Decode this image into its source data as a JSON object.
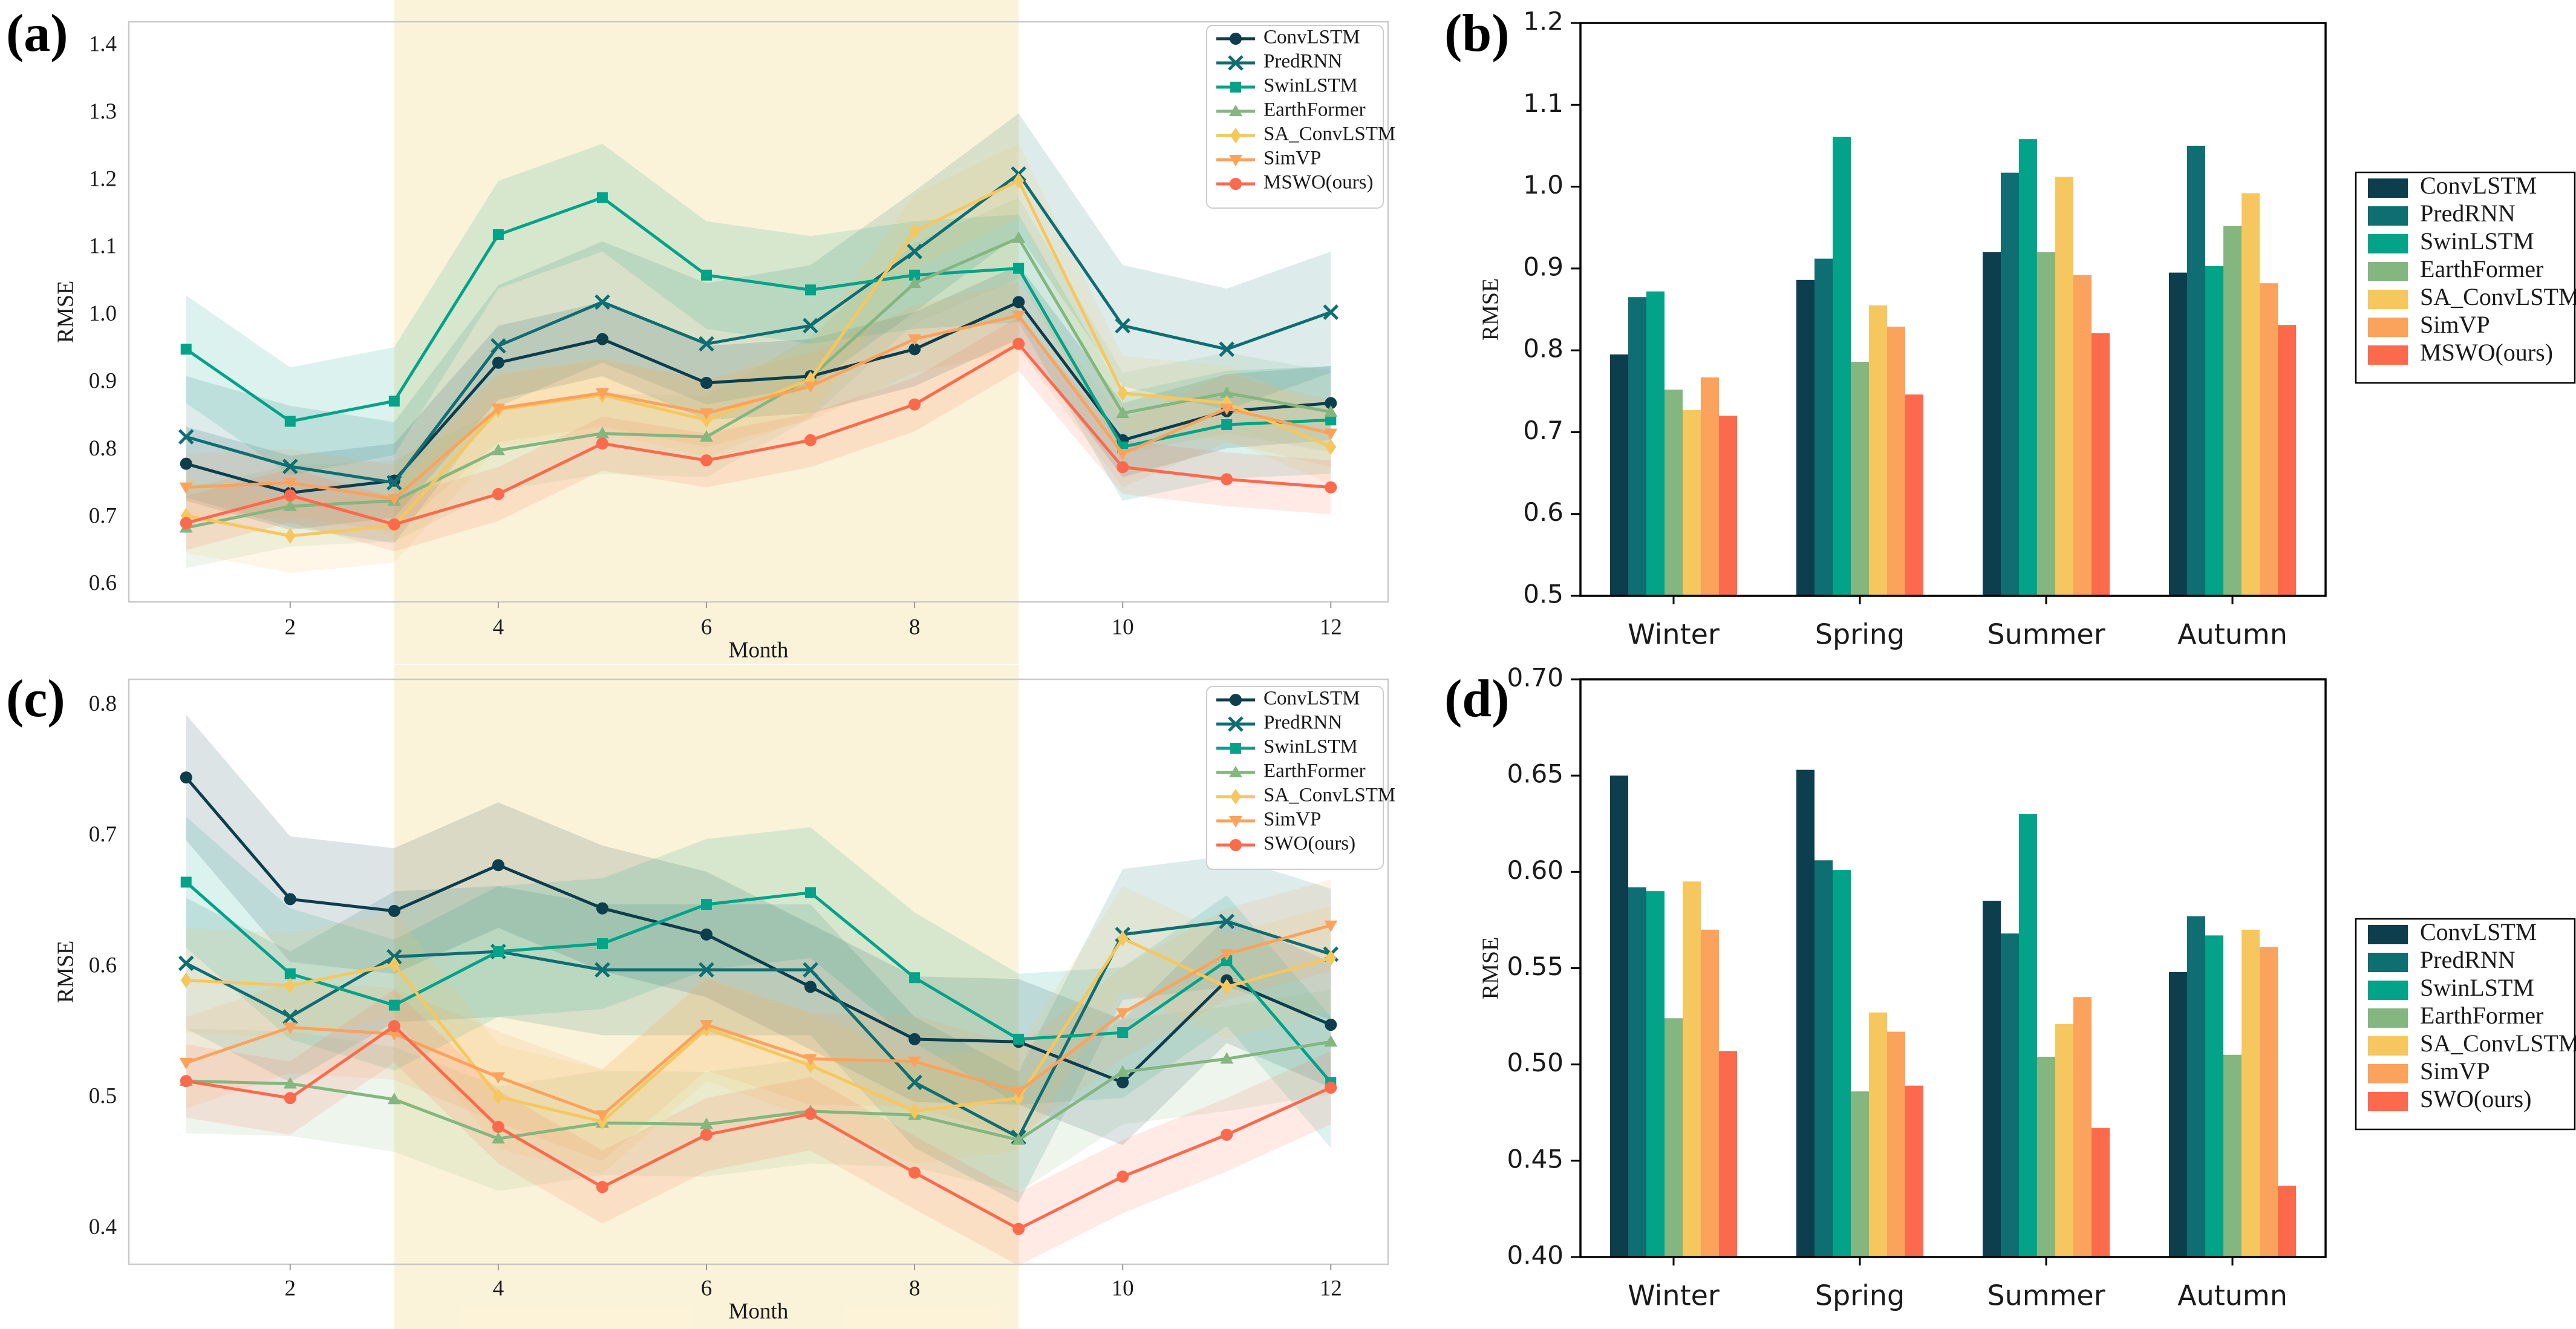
{
  "figure": {
    "description": "Four-panel RMSE comparison figure: monthly line charts with shaded uncertainty bands (a, c) and seasonal grouped bar charts (b, d)"
  },
  "style": {
    "highlight_color": "#f8e7b3",
    "highlight_opacity": 0.5,
    "band_opacity": 0.14,
    "line_panel_border": "#c9c9c9",
    "bar_panel_border": "#000000",
    "text_color": "#1a1a1a",
    "legend_border_line_panels": "#cccccc",
    "legend_border_bar_panels": "#000000"
  },
  "palette": {
    "ConvLSTM": "#0d3e4d",
    "PredRNN": "#0e6e72",
    "SwinLSTM": "#02a388",
    "EarthFormer": "#84b680",
    "SA_ConvLSTM": "#f6c75e",
    "SimVP": "#fba25c",
    "ours": "#fc6a4d"
  },
  "chart_data": [
    {
      "id": "a",
      "panel_label": "(a)",
      "type": "line",
      "xlabel": "Month",
      "ylabel": "RMSE",
      "x": [
        1,
        2,
        3,
        4,
        5,
        6,
        7,
        8,
        9,
        10,
        11,
        12
      ],
      "xticks": [
        2,
        4,
        6,
        8,
        10,
        12
      ],
      "ylim": [
        0.575,
        1.436
      ],
      "yticks": [
        0.6,
        0.7,
        0.8,
        0.9,
        1.0,
        1.1,
        1.2,
        1.3,
        1.4
      ],
      "ytick_decimals": 1,
      "highlight_span": [
        3,
        9
      ],
      "legend_position": "top-right-inside",
      "series": [
        {
          "name": "ConvLSTM",
          "color": "#0d3e4d",
          "marker": "circle",
          "band": 0.055,
          "values": [
            0.78,
            0.737,
            0.755,
            0.93,
            0.965,
            0.9,
            0.91,
            0.95,
            1.02,
            0.815,
            0.858,
            0.87
          ]
        },
        {
          "name": "PredRNN",
          "color": "#0e6e72",
          "marker": "x",
          "band": 0.09,
          "values": [
            0.82,
            0.776,
            0.752,
            0.955,
            1.02,
            0.958,
            0.985,
            1.095,
            1.21,
            0.985,
            0.95,
            1.005
          ]
        },
        {
          "name": "SwinLSTM",
          "color": "#02a388",
          "marker": "square",
          "band": 0.08,
          "values": [
            0.95,
            0.843,
            0.873,
            1.12,
            1.175,
            1.06,
            1.038,
            1.06,
            1.07,
            0.805,
            0.838,
            0.845
          ]
        },
        {
          "name": "EarthFormer",
          "color": "#84b680",
          "marker": "triangle-up",
          "band": 0.06,
          "values": [
            0.685,
            0.717,
            0.725,
            0.8,
            0.825,
            0.82,
            0.908,
            1.048,
            1.115,
            0.855,
            0.885,
            0.857
          ]
        },
        {
          "name": "SA_ConvLSTM",
          "color": "#f6c75e",
          "marker": "diamond",
          "band": 0.055,
          "values": [
            0.703,
            0.673,
            0.688,
            0.86,
            0.882,
            0.845,
            0.905,
            1.125,
            1.2,
            0.885,
            0.87,
            0.805
          ]
        },
        {
          "name": "SimVP",
          "color": "#fba25c",
          "marker": "triangle-down",
          "band": 0.05,
          "values": [
            0.745,
            0.752,
            0.728,
            0.862,
            0.885,
            0.855,
            0.895,
            0.965,
            1.0,
            0.795,
            0.862,
            0.825
          ]
        },
        {
          "name": "MSWO(ours)",
          "color": "#fc6a4d",
          "marker": "circle",
          "band": 0.04,
          "values": [
            0.692,
            0.733,
            0.69,
            0.735,
            0.81,
            0.785,
            0.815,
            0.868,
            0.958,
            0.775,
            0.757,
            0.745
          ]
        }
      ]
    },
    {
      "id": "b",
      "panel_label": "(b)",
      "type": "bar",
      "xlabel": "",
      "ylabel": "RMSE",
      "categories": [
        "Winter",
        "Spring",
        "Summer",
        "Autumn"
      ],
      "ylim": [
        0.5,
        1.2
      ],
      "yticks": [
        0.5,
        0.6,
        0.7,
        0.8,
        0.9,
        1.0,
        1.1,
        1.2
      ],
      "ytick_decimals": 1,
      "legend_position": "right-outside",
      "series": [
        {
          "name": "ConvLSTM",
          "color": "#0d3e4d",
          "values": [
            0.795,
            0.886,
            0.92,
            0.895
          ]
        },
        {
          "name": "PredRNN",
          "color": "#0e6e72",
          "values": [
            0.865,
            0.912,
            1.017,
            1.05
          ]
        },
        {
          "name": "SwinLSTM",
          "color": "#02a388",
          "values": [
            0.872,
            1.061,
            1.058,
            0.903
          ]
        },
        {
          "name": "EarthFormer",
          "color": "#84b680",
          "values": [
            0.752,
            0.786,
            0.92,
            0.952
          ]
        },
        {
          "name": "SA_ConvLSTM",
          "color": "#f6c75e",
          "values": [
            0.727,
            0.855,
            1.012,
            0.992
          ]
        },
        {
          "name": "SimVP",
          "color": "#fba25c",
          "values": [
            0.767,
            0.829,
            0.892,
            0.882
          ]
        },
        {
          "name": "MSWO(ours)",
          "color": "#fc6a4d",
          "values": [
            0.72,
            0.746,
            0.821,
            0.831
          ]
        }
      ]
    },
    {
      "id": "c",
      "panel_label": "(c)",
      "type": "line",
      "xlabel": "Month",
      "ylabel": "RMSE",
      "x": [
        1,
        2,
        3,
        4,
        5,
        6,
        7,
        8,
        9,
        10,
        11,
        12
      ],
      "xticks": [
        2,
        4,
        6,
        8,
        10,
        12
      ],
      "ylim": [
        0.373,
        0.82
      ],
      "yticks": [
        0.4,
        0.5,
        0.6,
        0.7,
        0.8
      ],
      "ytick_decimals": 1,
      "highlight_span": [
        3,
        9
      ],
      "legend_position": "top-right-inside",
      "series": [
        {
          "name": "ConvLSTM",
          "color": "#0d3e4d",
          "marker": "circle",
          "band": 0.048,
          "values": [
            0.745,
            0.652,
            0.643,
            0.678,
            0.645,
            0.625,
            0.585,
            0.545,
            0.543,
            0.512,
            0.59,
            0.556
          ]
        },
        {
          "name": "PredRNN",
          "color": "#0e6e72",
          "marker": "x",
          "band": 0.05,
          "values": [
            0.603,
            0.562,
            0.608,
            0.612,
            0.598,
            0.598,
            0.598,
            0.512,
            0.47,
            0.625,
            0.635,
            0.61
          ]
        },
        {
          "name": "SwinLSTM",
          "color": "#02a388",
          "marker": "square",
          "band": 0.05,
          "values": [
            0.665,
            0.595,
            0.571,
            0.612,
            0.618,
            0.648,
            0.657,
            0.592,
            0.545,
            0.55,
            0.605,
            0.512
          ]
        },
        {
          "name": "EarthFormer",
          "color": "#84b680",
          "marker": "triangle-up",
          "band": 0.04,
          "values": [
            0.513,
            0.511,
            0.499,
            0.469,
            0.481,
            0.48,
            0.49,
            0.487,
            0.468,
            0.52,
            0.53,
            0.543
          ]
        },
        {
          "name": "SA_ConvLSTM",
          "color": "#f6c75e",
          "marker": "diamond",
          "band": 0.04,
          "values": [
            0.59,
            0.586,
            0.602,
            0.501,
            0.482,
            0.553,
            0.525,
            0.49,
            0.5,
            0.622,
            0.585,
            0.607
          ]
        },
        {
          "name": "SimVP",
          "color": "#fba25c",
          "marker": "triangle-down",
          "band": 0.035,
          "values": [
            0.527,
            0.554,
            0.549,
            0.516,
            0.487,
            0.556,
            0.53,
            0.528,
            0.505,
            0.565,
            0.61,
            0.632
          ]
        },
        {
          "name": "SWO(ours)",
          "color": "#fc6a4d",
          "marker": "circle",
          "band": 0.028,
          "values": [
            0.513,
            0.5,
            0.555,
            0.478,
            0.432,
            0.472,
            0.488,
            0.443,
            0.4,
            0.44,
            0.472,
            0.508
          ]
        }
      ]
    },
    {
      "id": "d",
      "panel_label": "(d)",
      "type": "bar",
      "xlabel": "",
      "ylabel": "RMSE",
      "categories": [
        "Winter",
        "Spring",
        "Summer",
        "Autumn"
      ],
      "ylim": [
        0.4,
        0.7
      ],
      "yticks": [
        0.4,
        0.45,
        0.5,
        0.55,
        0.6,
        0.65,
        0.7
      ],
      "ytick_decimals": 2,
      "legend_position": "right-outside",
      "series": [
        {
          "name": "ConvLSTM",
          "color": "#0d3e4d",
          "values": [
            0.65,
            0.653,
            0.585,
            0.548
          ]
        },
        {
          "name": "PredRNN",
          "color": "#0e6e72",
          "values": [
            0.592,
            0.606,
            0.568,
            0.577
          ]
        },
        {
          "name": "SwinLSTM",
          "color": "#02a388",
          "values": [
            0.59,
            0.601,
            0.63,
            0.567
          ]
        },
        {
          "name": "EarthFormer",
          "color": "#84b680",
          "values": [
            0.524,
            0.486,
            0.504,
            0.505
          ]
        },
        {
          "name": "SA_ConvLSTM",
          "color": "#f6c75e",
          "values": [
            0.595,
            0.527,
            0.521,
            0.57
          ]
        },
        {
          "name": "SimVP",
          "color": "#fba25c",
          "values": [
            0.57,
            0.517,
            0.535,
            0.561
          ]
        },
        {
          "name": "SWO(ours)",
          "color": "#fc6a4d",
          "values": [
            0.507,
            0.489,
            0.467,
            0.437
          ]
        }
      ]
    }
  ]
}
